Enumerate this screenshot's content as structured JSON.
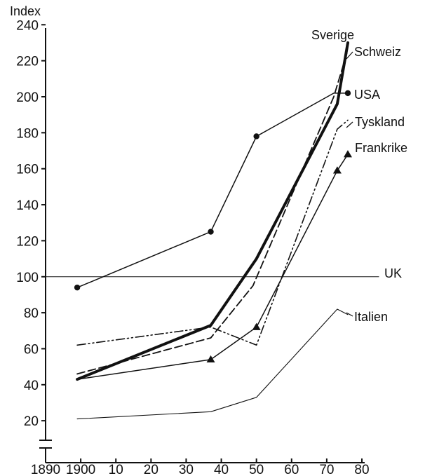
{
  "chart_data": {
    "type": "line",
    "ylabel": "Index",
    "xlim": [
      1890,
      1980
    ],
    "ylim": [
      0,
      240
    ],
    "x_ticks": [
      {
        "value": 1890,
        "label": "1890"
      },
      {
        "value": 1900,
        "label": "1900"
      },
      {
        "value": 1910,
        "label": "10"
      },
      {
        "value": 1920,
        "label": "20"
      },
      {
        "value": 1930,
        "label": "30"
      },
      {
        "value": 1940,
        "label": "40"
      },
      {
        "value": 1950,
        "label": "50"
      },
      {
        "value": 1960,
        "label": "60"
      },
      {
        "value": 1970,
        "label": "70"
      },
      {
        "value": 1980,
        "label": "80"
      }
    ],
    "y_ticks": [
      {
        "value": 20,
        "label": "20"
      },
      {
        "value": 40,
        "label": "40"
      },
      {
        "value": 60,
        "label": "60"
      },
      {
        "value": 80,
        "label": "80"
      },
      {
        "value": 100,
        "label": "100"
      },
      {
        "value": 120,
        "label": "120"
      },
      {
        "value": 140,
        "label": "140"
      },
      {
        "value": 160,
        "label": "160"
      },
      {
        "value": 180,
        "label": "180"
      },
      {
        "value": 200,
        "label": "200"
      },
      {
        "value": 220,
        "label": "220"
      },
      {
        "value": 240,
        "label": "240"
      }
    ],
    "axis_break": true,
    "grid": false,
    "series": [
      {
        "name": "Sverige",
        "style": "thick-solid",
        "marker": "none",
        "x": [
          1899,
          1937,
          1950,
          1973,
          1976
        ],
        "y": [
          43,
          73,
          110,
          196,
          230
        ]
      },
      {
        "name": "Schweiz",
        "style": "dashed",
        "marker": "none",
        "x": [
          1899,
          1937,
          1949,
          1972,
          1976
        ],
        "y": [
          46,
          66,
          95,
          200,
          226
        ]
      },
      {
        "name": "USA",
        "style": "solid",
        "marker": "circle",
        "x": [
          1899,
          1937,
          1950,
          1972,
          1976
        ],
        "y": [
          94,
          125,
          178,
          202,
          202
        ]
      },
      {
        "name": "Tyskland",
        "style": "dash-dot-dot",
        "marker": "none",
        "x": [
          1899,
          1937,
          1950,
          1973,
          1976
        ],
        "y": [
          62,
          72,
          62,
          182,
          187
        ]
      },
      {
        "name": "Frankrike",
        "style": "solid",
        "marker": "triangle",
        "x": [
          1899,
          1937,
          1950,
          1973,
          1976
        ],
        "y": [
          43,
          54,
          72,
          159,
          168
        ]
      },
      {
        "name": "Italien",
        "style": "thin-solid",
        "marker": "none",
        "x": [
          1899,
          1937,
          1950,
          1973,
          1976
        ],
        "y": [
          21,
          25,
          33,
          82,
          79
        ]
      },
      {
        "name": "UK",
        "style": "thin-solid",
        "marker": "none",
        "x": [
          1890,
          1980
        ],
        "y": [
          100,
          100
        ]
      }
    ]
  }
}
